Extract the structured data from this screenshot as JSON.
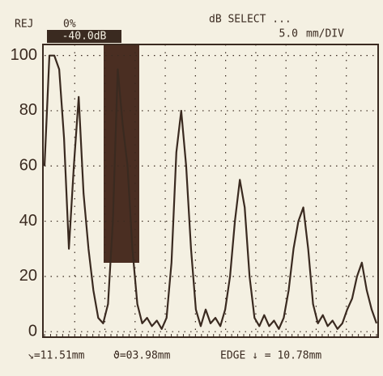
{
  "header": {
    "reject_label": "REJ",
    "reject_value": "0%",
    "mode": "dB SELECT ...",
    "gain": "-40.0dB",
    "range_value": "5.0",
    "range_unit": "mm/DIV"
  },
  "footer": {
    "sound_path": "↘=11.51mm",
    "angle_depth": "ϑ=03.98mm",
    "edge": "EDGE ↓ = 10.78mm"
  },
  "chart_data": {
    "type": "line",
    "color": "#3a2a20",
    "values": [
      60,
      100,
      100,
      95,
      70,
      30,
      60,
      85,
      50,
      30,
      15,
      5,
      3,
      10,
      40,
      95,
      75,
      60,
      30,
      10,
      3,
      5,
      2,
      4,
      1,
      5,
      25,
      65,
      80,
      60,
      30,
      8,
      2,
      8,
      3,
      5,
      2,
      8,
      20,
      40,
      55,
      45,
      20,
      5,
      2,
      6,
      2,
      4,
      1,
      5,
      15,
      30,
      40,
      45,
      30,
      10,
      3,
      6,
      2,
      4,
      1,
      3,
      8,
      12,
      20,
      25,
      15,
      8,
      3
    ],
    "ylim": [
      -2,
      104
    ],
    "yticks": [
      0,
      20,
      40,
      60,
      80,
      100
    ],
    "grid": true
  }
}
